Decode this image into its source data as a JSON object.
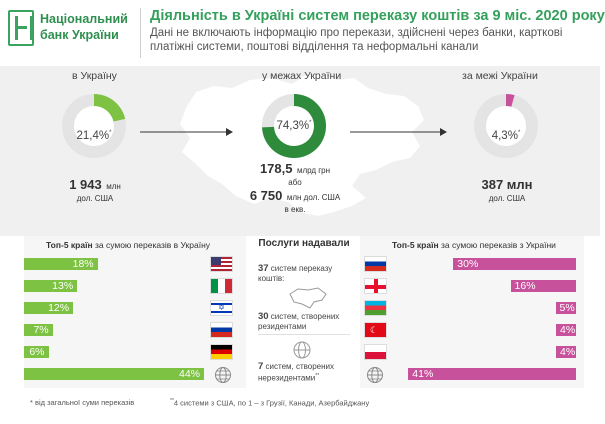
{
  "header": {
    "logo_line1": "Національний",
    "logo_line2": "банк України",
    "title": "Діяльність в Україні систем переказу коштів за 9 міс. 2020 року",
    "subtitle": "Дані не включають інформацію про перекази, здійснені через банки, карткові платіжні системи, поштові відділення та неформальні канали"
  },
  "flows": {
    "inbound": {
      "label": "в Україну",
      "percent": "21,4",
      "percent_value": 21.4,
      "mark": "*",
      "amount": "1 943",
      "amount_unit": "млн",
      "currency": "дол. США",
      "color": "#7dc242"
    },
    "domestic": {
      "label": "у межах України",
      "percent": "74,3",
      "percent_value": 74.3,
      "mark": "*",
      "amount": "178,5",
      "amount_unit": "млрд грн",
      "or": "або",
      "amount2": "6 750",
      "amount2_unit": "млн дол. США",
      "eq": "в екв.",
      "color": "#2e8b3c"
    },
    "outbound": {
      "label": "за межі України",
      "percent": "4,3",
      "percent_value": 4.3,
      "mark": "*",
      "amount": "387 млн",
      "currency": "дол. США",
      "color": "#c8519b"
    }
  },
  "top_in": {
    "title_bold": "Топ-5 країн",
    "title_rest": " за сумою переказів в Україну",
    "color": "#7dc242",
    "rows": [
      {
        "label": "18%",
        "value": 18,
        "icon": "flag-usa"
      },
      {
        "label": "13%",
        "value": 13,
        "icon": "flag-italy"
      },
      {
        "label": "12%",
        "value": 12,
        "icon": "flag-israel"
      },
      {
        "label": "7%",
        "value": 7,
        "icon": "flag-russia"
      },
      {
        "label": "6%",
        "value": 6,
        "icon": "flag-germany"
      },
      {
        "label": "44%",
        "value": 44,
        "icon": "globe-icon"
      }
    ]
  },
  "top_out": {
    "title_bold": "Топ-5 країн",
    "title_rest": " за сумою переказів з України",
    "color": "#c8519b",
    "rows": [
      {
        "label": "30%",
        "value": 30,
        "icon": "flag-russia"
      },
      {
        "label": "16%",
        "value": 16,
        "icon": "flag-georgia"
      },
      {
        "label": "5%",
        "value": 5,
        "icon": "flag-azerbaijan"
      },
      {
        "label": "4%",
        "value": 4,
        "icon": "flag-turkey"
      },
      {
        "label": "4%",
        "value": 4,
        "icon": "flag-poland"
      },
      {
        "label": "41%",
        "value": 41,
        "icon": "globe-icon"
      }
    ]
  },
  "services": {
    "title": "Послуги надавали",
    "item1_num": "37",
    "item1_text": " систем переказу коштів:",
    "item2_num": "30",
    "item2_text": " систем, створених резидентами",
    "item3_num": "7",
    "item3_text": " систем, створених нерезидентами",
    "item3_mark": "**"
  },
  "footnotes": {
    "note1": "* від загальної суми переказів",
    "note2_mark": "**",
    "note2": "4 системи з США, по 1 – з Грузії, Канади, Азербайджану"
  }
}
